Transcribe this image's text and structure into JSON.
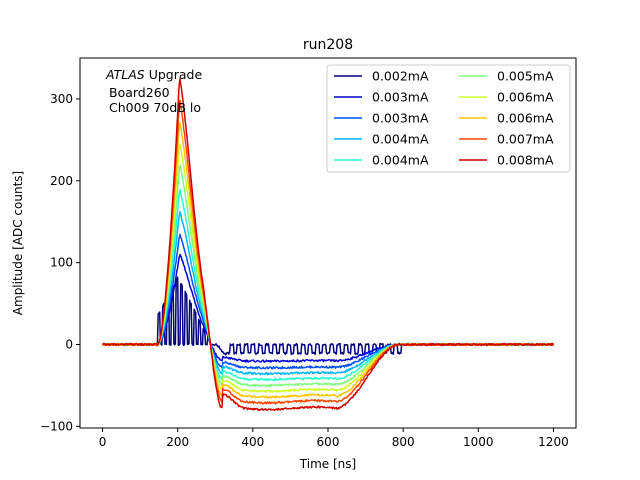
{
  "chart_data": {
    "type": "line",
    "title": "run208",
    "xlabel": "Time [ns]",
    "ylabel": "Amplitude [ADC counts]",
    "xlim": [
      -60,
      1260
    ],
    "ylim": [
      -102,
      350
    ],
    "xticks": [
      0,
      200,
      400,
      600,
      800,
      1000,
      1200
    ],
    "yticks": [
      -100,
      0,
      100,
      200,
      300
    ],
    "grid": false,
    "legend": {
      "placement": "top-right",
      "columns": 2
    },
    "annotation": {
      "italic": "ATLAS",
      "rest": " Upgrade",
      "line2": "Board260",
      "line3": "Ch009 70dB lo"
    },
    "series": [
      {
        "name": "0.002mA",
        "color": "#00007f",
        "peak": 82,
        "undershoot": -12,
        "pulsed": true
      },
      {
        "name": "0.003mA",
        "color": "#0000d1",
        "peak": 110,
        "undershoot": -20,
        "pulsed": false
      },
      {
        "name": "0.003mA",
        "color": "#0050ff",
        "peak": 135,
        "undershoot": -28,
        "pulsed": false
      },
      {
        "name": "0.004mA",
        "color": "#00b4ff",
        "peak": 163,
        "undershoot": -35,
        "pulsed": false
      },
      {
        "name": "0.004mA",
        "color": "#29ffce",
        "peak": 190,
        "undershoot": -42,
        "pulsed": false
      },
      {
        "name": "0.005mA",
        "color": "#7dff7a",
        "peak": 220,
        "undershoot": -49,
        "pulsed": false
      },
      {
        "name": "0.006mA",
        "color": "#ceff29",
        "peak": 247,
        "undershoot": -56,
        "pulsed": false
      },
      {
        "name": "0.006mA",
        "color": "#ffc400",
        "peak": 273,
        "undershoot": -63,
        "pulsed": false
      },
      {
        "name": "0.007mA",
        "color": "#ff4800",
        "peak": 300,
        "undershoot": -70,
        "pulsed": false
      },
      {
        "name": "0.008mA",
        "color": "#d10000",
        "peak": 328,
        "undershoot": -78,
        "pulsed": false
      }
    ]
  }
}
